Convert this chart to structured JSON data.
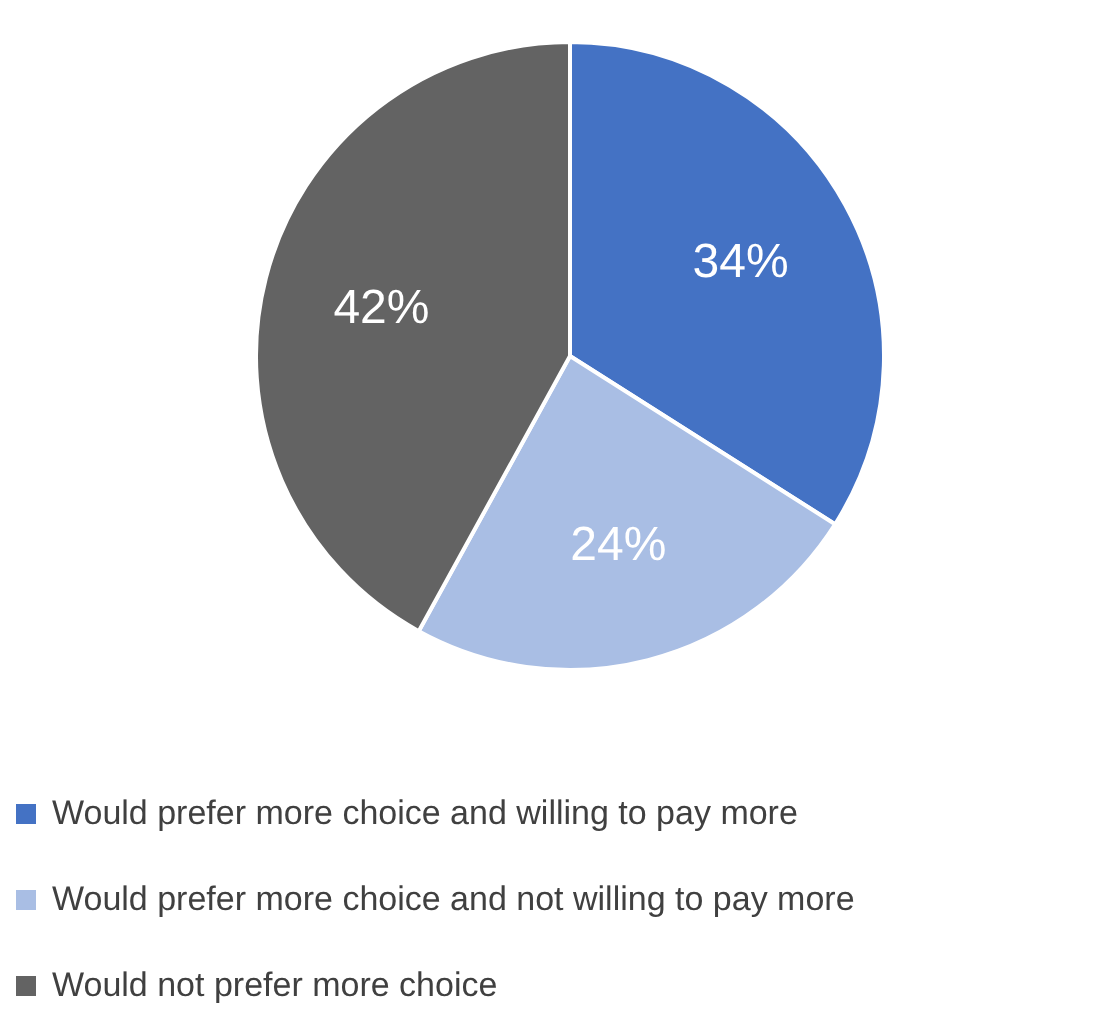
{
  "chart_data": {
    "type": "pie",
    "categories": [
      "Would prefer more choice and willing to pay more",
      "Would prefer more choice and not willing to pay more",
      "Would not prefer more choice"
    ],
    "values": [
      34,
      24,
      42
    ],
    "value_labels": [
      "34%",
      "24%",
      "42%"
    ],
    "colors": [
      "#4472c4",
      "#a9bee4",
      "#636363"
    ],
    "legend": "bottom"
  }
}
